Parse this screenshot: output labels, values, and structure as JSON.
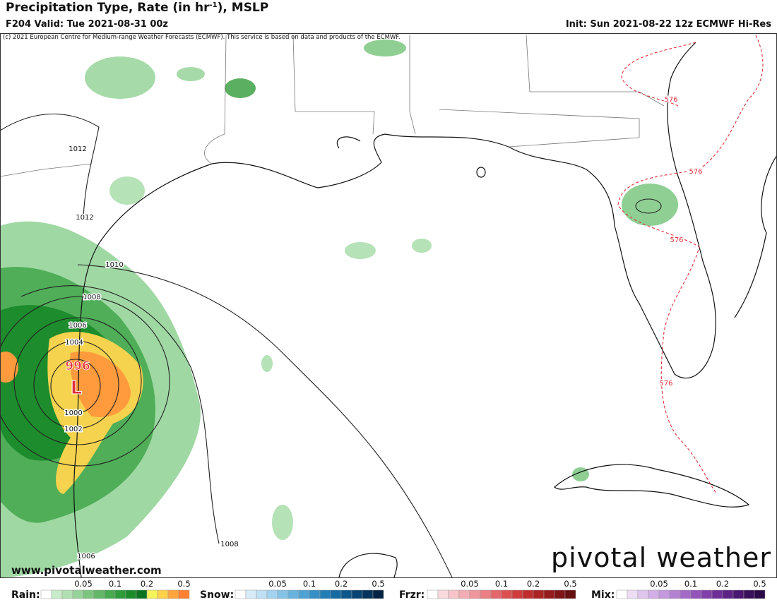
{
  "header": {
    "title": [
      "Precipitation Type, Rate (in hr",
      "-1",
      "), MSLP"
    ],
    "valid": "F204 Valid: Tue 2021-08-31 00z",
    "init": "Init: Sun 2021-08-22 12z ECMWF Hi-Res",
    "copyright": "(c) 2021 European Centre for Medium-range Weather Forecasts (ECMWF). This service is based on data and products of the ECMWF."
  },
  "map": {
    "isobar_labels": [
      "1012",
      "1012",
      "1010",
      "1008",
      "1006",
      "1004",
      "1000",
      "1002",
      "1006",
      "1008"
    ],
    "thickness_labels": [
      "576",
      "576",
      "576",
      "576"
    ],
    "low": {
      "pressure": "996",
      "symbol": "L"
    },
    "website": "www.pivotalweather.com",
    "logo": "pivotal weather"
  },
  "legend": [
    {
      "name": "Rain:",
      "ticks": [
        "0.05",
        "0.1",
        "0.2",
        "0.5"
      ],
      "colors": [
        "#ffffff",
        "#c8ecc9",
        "#b0e0b2",
        "#96d399",
        "#7cc680",
        "#62b868",
        "#48aa50",
        "#2e9c3a",
        "#1a8c2a",
        "#0c7420",
        "#f6f25a",
        "#ffd04a",
        "#ffa53e",
        "#ff8030"
      ]
    },
    {
      "name": "Snow:",
      "ticks": [
        "0.05",
        "0.1",
        "0.2",
        "0.5"
      ],
      "colors": [
        "#ffffff",
        "#d8ecf8",
        "#bfe0f4",
        "#a3d2ef",
        "#86c3e8",
        "#69b3df",
        "#4fa2d4",
        "#3690c6",
        "#237db6",
        "#166aa2",
        "#0e578c",
        "#094574",
        "#06345c",
        "#042446"
      ]
    },
    {
      "name": "Frzr:",
      "ticks": [
        "0.05",
        "0.1",
        "0.2",
        "0.5"
      ],
      "colors": [
        "#ffffff",
        "#fadadd",
        "#f6c4c9",
        "#f2aeb4",
        "#ee969c",
        "#ea7f84",
        "#e4676b",
        "#dc5052",
        "#d03c3c",
        "#bf2e2e",
        "#ab2424",
        "#951c1c",
        "#7e1616",
        "#661010"
      ]
    },
    {
      "name": "Mix:",
      "ticks": [
        "0.05",
        "0.1",
        "0.2",
        "0.5"
      ],
      "colors": [
        "#ffffff",
        "#ecdcf4",
        "#dfc6ee",
        "#d1afe6",
        "#c398dd",
        "#b481d3",
        "#a46ac7",
        "#9354b9",
        "#8140a9",
        "#6e2f97",
        "#5c2284",
        "#4a1870",
        "#39105b",
        "#2a0a46"
      ]
    }
  ]
}
